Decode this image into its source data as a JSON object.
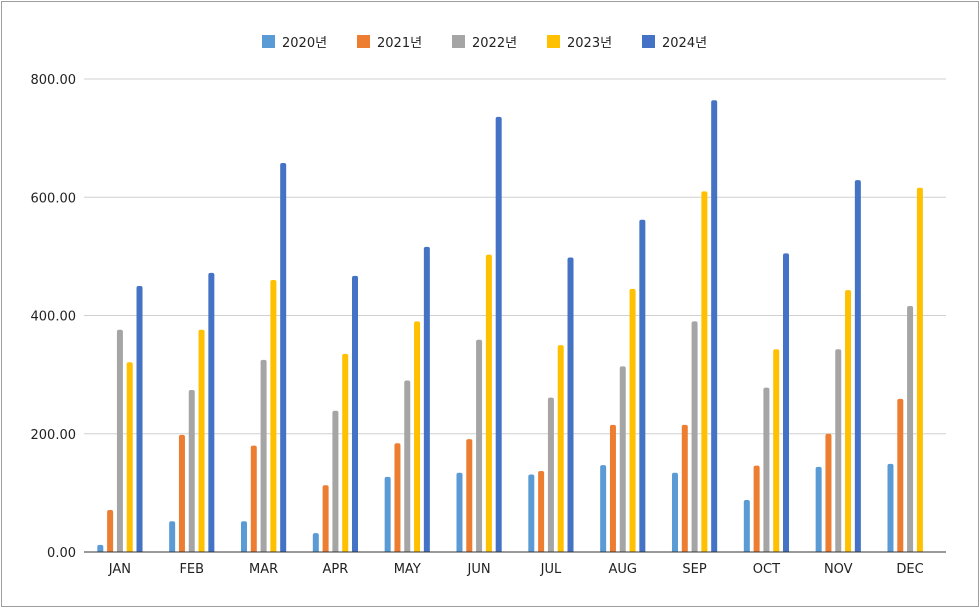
{
  "chart_data": {
    "type": "bar",
    "title": "",
    "xlabel": "",
    "ylabel": "",
    "ylim": [
      0,
      800
    ],
    "yticks": [
      "0.00",
      "200.00",
      "400.00",
      "600.00",
      "800.00"
    ],
    "grid": true,
    "legend_position": "top-center",
    "categories": [
      "JAN",
      "FEB",
      "MAR",
      "APR",
      "MAY",
      "JUN",
      "JUL",
      "AUG",
      "SEP",
      "OCT",
      "NOV",
      "DEC"
    ],
    "series": [
      {
        "name": "2020년",
        "color": "#5b9bd5",
        "values": [
          12,
          52,
          52,
          32,
          127,
          134,
          131,
          147,
          134,
          88,
          144,
          149
        ]
      },
      {
        "name": "2021년",
        "color": "#ed7d31",
        "values": [
          71,
          198,
          180,
          113,
          184,
          191,
          137,
          215,
          215,
          146,
          200,
          259
        ]
      },
      {
        "name": "2022년",
        "color": "#a5a5a5",
        "values": [
          376,
          274,
          325,
          239,
          290,
          359,
          261,
          314,
          390,
          278,
          343,
          416
        ]
      },
      {
        "name": "2023년",
        "color": "#ffc000",
        "values": [
          321,
          376,
          460,
          335,
          390,
          503,
          350,
          445,
          610,
          343,
          443,
          616
        ]
      },
      {
        "name": "2024년",
        "color": "#4472c4",
        "values": [
          450,
          472,
          658,
          467,
          516,
          736,
          498,
          562,
          764,
          505,
          629,
          null
        ]
      }
    ]
  }
}
